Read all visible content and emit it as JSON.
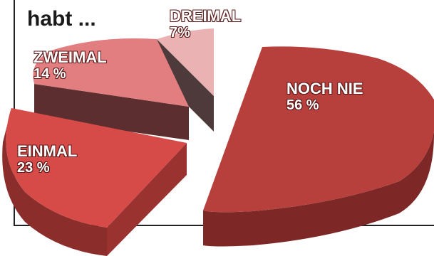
{
  "title": "habt ...",
  "colors": {
    "frame": "#222222",
    "slice_tops": [
      "#b7403c",
      "#d64a48",
      "#e27e80",
      "#ebb2b4"
    ],
    "slice_sides": [
      "#7d2826",
      "#9a3230",
      "#5c2e2f",
      "#5a4546"
    ]
  },
  "chart_data": {
    "type": "pie",
    "style": "3d-exploded",
    "title": "habt ...",
    "slices": [
      {
        "label": "NOCH NIE",
        "value_label": "56 %",
        "value": 56
      },
      {
        "label": "EINMAL",
        "value_label": "23 %",
        "value": 23
      },
      {
        "label": "ZWEIMAL",
        "value_label": "14 %",
        "value": 14
      },
      {
        "label": "DREIMAL",
        "value_label": "7%",
        "value": 7
      }
    ]
  }
}
